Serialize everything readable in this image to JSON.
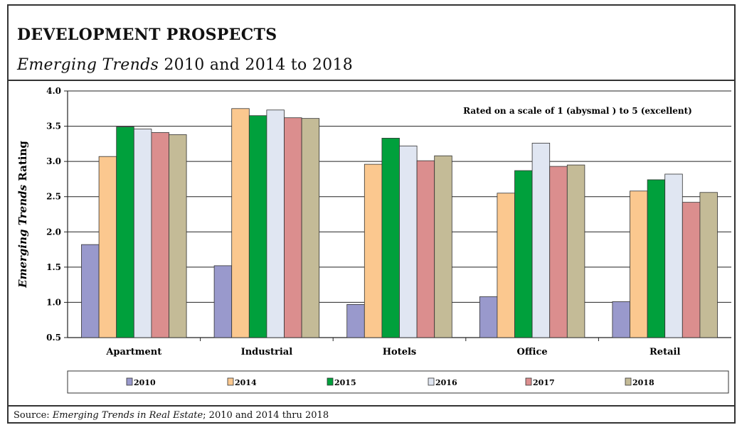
{
  "header": {
    "title": "DEVELOPMENT PROSPECTS",
    "subtitle_italic": "Emerging Trends",
    "subtitle_rest": " 2010 and 2014 to 2018"
  },
  "footer": {
    "source_prefix": "Source: ",
    "source_italic": "Emerging Trends in Real Estate",
    "source_rest": "; 2010 and 2014 thru 2018"
  },
  "chart_data": {
    "type": "bar",
    "title": "DEVELOPMENT PROSPECTS",
    "subtitle": "Emerging Trends 2010 and 2014 to 2018",
    "ylabel_italic": "Emerging Trends",
    "ylabel_rest": " Rating",
    "xlabel": "",
    "ylim": [
      0.5,
      4.0
    ],
    "yticks": [
      "0.5",
      "1.0",
      "1.5",
      "2.0",
      "2.5",
      "3.0",
      "3.5",
      "4.0"
    ],
    "grid": true,
    "legend_position": "bottom",
    "note": "Rated on a scale of 1 (abysmal ) to 5 (excellent)",
    "categories": [
      "Apartment",
      "Industrial",
      "Hotels",
      "Office",
      "Retail"
    ],
    "series": [
      {
        "name": "2010",
        "color": "#9999cc",
        "values": [
          1.82,
          1.52,
          0.97,
          1.08,
          1.01
        ]
      },
      {
        "name": "2014",
        "color": "#fbc88f",
        "values": [
          3.07,
          3.75,
          2.96,
          2.55,
          2.58
        ]
      },
      {
        "name": "2015",
        "color": "#00a03c",
        "values": [
          3.49,
          3.65,
          3.33,
          2.87,
          2.74
        ]
      },
      {
        "name": "2016",
        "color": "#e0e6f2",
        "values": [
          3.46,
          3.73,
          3.22,
          3.26,
          2.82
        ]
      },
      {
        "name": "2017",
        "color": "#db8e8e",
        "values": [
          3.41,
          3.62,
          3.01,
          2.93,
          2.42
        ]
      },
      {
        "name": "2018",
        "color": "#c4bb97",
        "values": [
          3.38,
          3.61,
          3.08,
          2.95,
          2.56
        ]
      }
    ]
  }
}
